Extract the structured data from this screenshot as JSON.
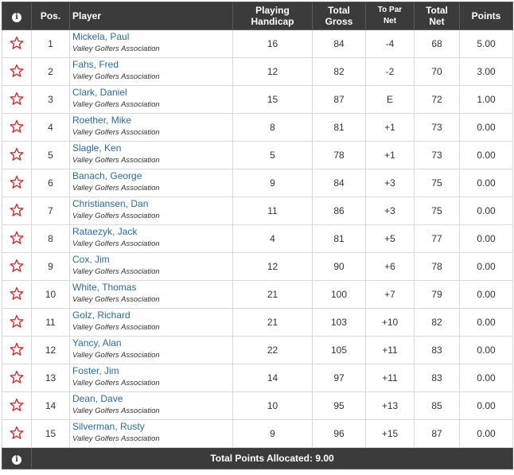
{
  "header": {
    "info_icon": "info-icon",
    "pos": "Pos.",
    "player": "Player",
    "playing_handicap_1": "Playing",
    "playing_handicap_2": "Handicap",
    "total_gross_1": "Total",
    "total_gross_2": "Gross",
    "to_par_net_1": "To Par",
    "to_par_net_2": "Net",
    "total_net_1": "Total",
    "total_net_2": "Net",
    "points": "Points"
  },
  "colors": {
    "header_bg": "#3b3b3b",
    "name_link": "#2a6aa6",
    "under_par": "#e2262b",
    "even_par": "#1e9a2f",
    "over_par": "#8a2ca6",
    "star": "#d9262b"
  },
  "rows": [
    {
      "pos": "1",
      "name": "Mickela, Paul",
      "assoc": "Valley Golfers Association",
      "hcp": "16",
      "gross": "84",
      "topar": "-4",
      "net": "68",
      "points": "5.00",
      "status": "neg"
    },
    {
      "pos": "2",
      "name": "Fahs, Fred",
      "assoc": "Valley Golfers Association",
      "hcp": "12",
      "gross": "82",
      "topar": "-2",
      "net": "70",
      "points": "3.00",
      "status": "neg"
    },
    {
      "pos": "3",
      "name": "Clark, Daniel",
      "assoc": "Valley Golfers Association",
      "hcp": "15",
      "gross": "87",
      "topar": "E",
      "net": "72",
      "points": "1.00",
      "status": "even"
    },
    {
      "pos": "4",
      "name": "Roether, Mike",
      "assoc": "Valley Golfers Association",
      "hcp": "8",
      "gross": "81",
      "topar": "+1",
      "net": "73",
      "points": "0.00",
      "status": "pos"
    },
    {
      "pos": "5",
      "name": "Slagle, Ken",
      "assoc": "Valley Golfers Association",
      "hcp": "5",
      "gross": "78",
      "topar": "+1",
      "net": "73",
      "points": "0.00",
      "status": "pos"
    },
    {
      "pos": "6",
      "name": "Banach, George",
      "assoc": "Valley Golfers Association",
      "hcp": "9",
      "gross": "84",
      "topar": "+3",
      "net": "75",
      "points": "0.00",
      "status": "pos"
    },
    {
      "pos": "7",
      "name": "Christiansen, Dan",
      "assoc": "Valley Golfers Association",
      "hcp": "11",
      "gross": "86",
      "topar": "+3",
      "net": "75",
      "points": "0.00",
      "status": "pos"
    },
    {
      "pos": "8",
      "name": "Rataezyk, Jack",
      "assoc": "Valley Golfers Association",
      "hcp": "4",
      "gross": "81",
      "topar": "+5",
      "net": "77",
      "points": "0.00",
      "status": "pos"
    },
    {
      "pos": "9",
      "name": "Cox, Jim",
      "assoc": "Valley Golfers Association",
      "hcp": "12",
      "gross": "90",
      "topar": "+6",
      "net": "78",
      "points": "0.00",
      "status": "pos"
    },
    {
      "pos": "10",
      "name": "White, Thomas",
      "assoc": "Valley Golfers Association",
      "hcp": "21",
      "gross": "100",
      "topar": "+7",
      "net": "79",
      "points": "0.00",
      "status": "pos"
    },
    {
      "pos": "11",
      "name": "Golz, Richard",
      "assoc": "Valley Golfers Association",
      "hcp": "21",
      "gross": "103",
      "topar": "+10",
      "net": "82",
      "points": "0.00",
      "status": "pos"
    },
    {
      "pos": "12",
      "name": "Yancy, Alan",
      "assoc": "Valley Golfers Association",
      "hcp": "22",
      "gross": "105",
      "topar": "+11",
      "net": "83",
      "points": "0.00",
      "status": "pos"
    },
    {
      "pos": "13",
      "name": "Foster, Jim",
      "assoc": "Valley Golfers Association",
      "hcp": "14",
      "gross": "97",
      "topar": "+11",
      "net": "83",
      "points": "0.00",
      "status": "pos"
    },
    {
      "pos": "14",
      "name": "Dean, Dave",
      "assoc": "Valley Golfers Association",
      "hcp": "10",
      "gross": "95",
      "topar": "+13",
      "net": "85",
      "points": "0.00",
      "status": "pos"
    },
    {
      "pos": "15",
      "name": "Silverman, Rusty",
      "assoc": "Valley Golfers Association",
      "hcp": "9",
      "gross": "96",
      "topar": "+15",
      "net": "87",
      "points": "0.00",
      "status": "pos"
    }
  ],
  "footer": {
    "info_icon": "info-icon",
    "total_label": "Total Points Allocated: 9.00"
  }
}
